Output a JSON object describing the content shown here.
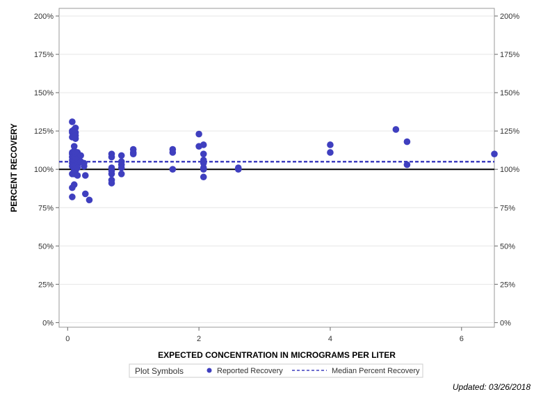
{
  "chart_data": {
    "type": "scatter",
    "xlabel": "EXPECTED CONCENTRATION IN MICROGRAMS PER LITER",
    "ylabel": "PERCENT RECOVERY",
    "xlim": [
      -0.13,
      6.5
    ],
    "ylim": [
      -3,
      205
    ],
    "x_ticks": [
      0,
      2,
      4,
      6
    ],
    "x_tick_labels": [
      "0",
      "2",
      "4",
      "6"
    ],
    "y_ticks": [
      0,
      25,
      50,
      75,
      100,
      125,
      150,
      175,
      200
    ],
    "y_tick_labels": [
      "0%",
      "25%",
      "50%",
      "75%",
      "100%",
      "125%",
      "150%",
      "175%",
      "200%"
    ],
    "grid": true,
    "reference_line": 100,
    "median_percent_recovery": 105,
    "legend": {
      "title": "Plot Symbols",
      "placement": "bottom",
      "entries": [
        "Reported Recovery",
        "Median Percent Recovery"
      ]
    },
    "series": [
      {
        "name": "Reported Recovery",
        "color": "#3f3fbf",
        "points": [
          [
            0.07,
            131
          ],
          [
            0.07,
            125
          ],
          [
            0.07,
            124
          ],
          [
            0.07,
            121
          ],
          [
            0.07,
            111
          ],
          [
            0.07,
            110
          ],
          [
            0.07,
            108
          ],
          [
            0.07,
            106
          ],
          [
            0.07,
            104
          ],
          [
            0.07,
            102
          ],
          [
            0.07,
            97
          ],
          [
            0.07,
            88
          ],
          [
            0.07,
            82
          ],
          [
            0.1,
            126
          ],
          [
            0.1,
            123
          ],
          [
            0.1,
            121
          ],
          [
            0.1,
            115
          ],
          [
            0.1,
            112
          ],
          [
            0.1,
            109
          ],
          [
            0.1,
            106
          ],
          [
            0.1,
            104
          ],
          [
            0.1,
            101
          ],
          [
            0.1,
            99
          ],
          [
            0.1,
            98
          ],
          [
            0.1,
            97
          ],
          [
            0.1,
            90
          ],
          [
            0.12,
            127
          ],
          [
            0.12,
            124
          ],
          [
            0.12,
            122
          ],
          [
            0.12,
            120
          ],
          [
            0.12,
            111
          ],
          [
            0.12,
            108
          ],
          [
            0.12,
            105
          ],
          [
            0.12,
            103
          ],
          [
            0.12,
            99
          ],
          [
            0.15,
            111
          ],
          [
            0.15,
            107
          ],
          [
            0.15,
            103
          ],
          [
            0.15,
            101
          ],
          [
            0.15,
            96
          ],
          [
            0.2,
            109
          ],
          [
            0.2,
            105
          ],
          [
            0.25,
            104
          ],
          [
            0.25,
            102
          ],
          [
            0.27,
            96
          ],
          [
            0.27,
            84
          ],
          [
            0.33,
            80
          ],
          [
            0.67,
            110
          ],
          [
            0.67,
            108
          ],
          [
            0.67,
            101
          ],
          [
            0.67,
            99
          ],
          [
            0.67,
            97
          ],
          [
            0.67,
            93
          ],
          [
            0.67,
            91
          ],
          [
            0.82,
            109
          ],
          [
            0.82,
            105
          ],
          [
            0.82,
            103
          ],
          [
            0.82,
            101
          ],
          [
            0.82,
            97
          ],
          [
            1.0,
            113
          ],
          [
            1.0,
            111
          ],
          [
            1.0,
            110
          ],
          [
            1.6,
            113
          ],
          [
            1.6,
            111
          ],
          [
            1.6,
            100
          ],
          [
            2.0,
            123
          ],
          [
            2.0,
            115
          ],
          [
            2.07,
            116
          ],
          [
            2.07,
            110
          ],
          [
            2.07,
            106
          ],
          [
            2.07,
            104
          ],
          [
            2.07,
            101
          ],
          [
            2.07,
            100
          ],
          [
            2.07,
            95
          ],
          [
            2.6,
            101
          ],
          [
            2.6,
            100
          ],
          [
            4.0,
            116
          ],
          [
            4.0,
            111
          ],
          [
            5.0,
            126
          ],
          [
            5.17,
            118
          ],
          [
            5.17,
            103
          ],
          [
            6.5,
            110
          ]
        ]
      }
    ]
  },
  "footnote": "Updated: 03/26/2018"
}
